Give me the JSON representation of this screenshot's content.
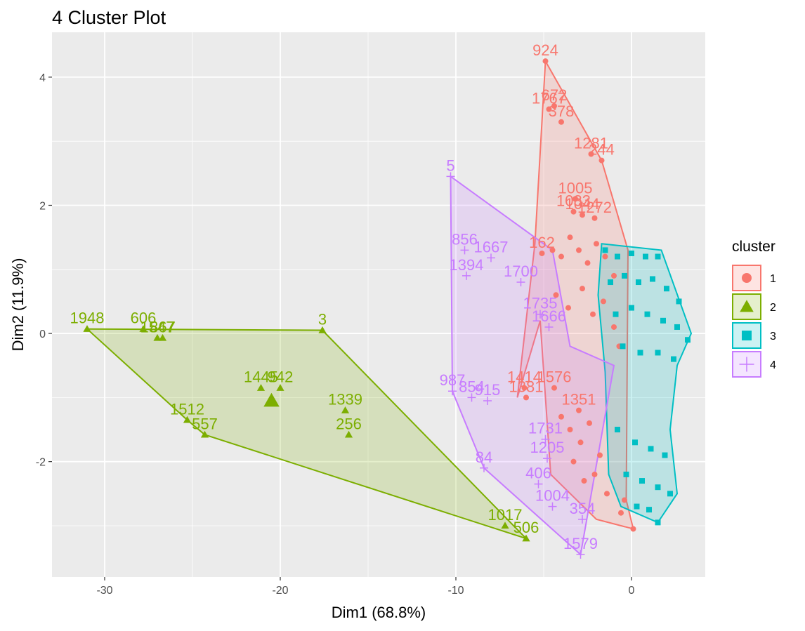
{
  "chart_data": {
    "type": "scatter",
    "title": "4 Cluster Plot",
    "xlabel": "Dim1 (68.8%)",
    "ylabel": "Dim2 (11.9%)",
    "xlim": [
      -33,
      4.2
    ],
    "ylim": [
      -3.8,
      4.7
    ],
    "x_ticks": [
      -30,
      -20,
      -10,
      0
    ],
    "y_ticks": [
      -2,
      0,
      2,
      4
    ],
    "grid": true,
    "legend": {
      "title": "cluster",
      "position": "right",
      "entries": [
        "1",
        "2",
        "3",
        "4"
      ]
    },
    "colors": {
      "1": "#F8766D",
      "2": "#7CAE00",
      "3": "#00BFC4",
      "4": "#C77CFF"
    },
    "series": [
      {
        "name": "1",
        "marker": "circle",
        "hull": [
          [
            -4.9,
            4.25
          ],
          [
            -1.7,
            2.7
          ],
          [
            -0.2,
            1.3
          ],
          [
            -0.3,
            -2.6
          ],
          [
            0.1,
            -3.05
          ],
          [
            -2,
            -2.9
          ],
          [
            -4.6,
            -2.2
          ],
          [
            -5.2,
            0.2
          ],
          [
            -6.5,
            -1
          ],
          [
            -5.5,
            1.4
          ]
        ],
        "points": [
          {
            "label": "924",
            "x": -4.9,
            "y": 4.25
          },
          {
            "label": "1767",
            "x": -4.7,
            "y": 3.5
          },
          {
            "label": "672",
            "x": -4.4,
            "y": 3.55
          },
          {
            "label": "378",
            "x": -4.0,
            "y": 3.3
          },
          {
            "label": "1281",
            "x": -2.3,
            "y": 2.8
          },
          {
            "label": "244",
            "x": -1.7,
            "y": 2.7
          },
          {
            "label": "1005",
            "x": -3.2,
            "y": 2.1
          },
          {
            "label": "1033",
            "x": -3.3,
            "y": 1.9
          },
          {
            "label": "1044",
            "x": -2.8,
            "y": 1.85
          },
          {
            "label": "1272",
            "x": -2.1,
            "y": 1.8
          },
          {
            "label": "162",
            "x": -5.1,
            "y": 1.25
          },
          {
            "label": "1414",
            "x": -6.1,
            "y": -0.85
          },
          {
            "label": "1576",
            "x": -4.4,
            "y": -0.85
          },
          {
            "label": "1381",
            "x": -6.0,
            "y": -1.0
          },
          {
            "label": "1351",
            "x": -3.0,
            "y": -1.2
          },
          {
            "label": "",
            "x": -4.5,
            "y": 1.3
          },
          {
            "label": "",
            "x": -4.0,
            "y": 1.2
          },
          {
            "label": "",
            "x": -3.5,
            "y": 1.5
          },
          {
            "label": "",
            "x": -3.0,
            "y": 1.3
          },
          {
            "label": "",
            "x": -2.5,
            "y": 1.1
          },
          {
            "label": "",
            "x": -2.0,
            "y": 1.4
          },
          {
            "label": "",
            "x": -1.5,
            "y": 1.2
          },
          {
            "label": "",
            "x": -1.0,
            "y": 0.9
          },
          {
            "label": "",
            "x": -4.3,
            "y": 0.6
          },
          {
            "label": "",
            "x": -3.6,
            "y": 0.4
          },
          {
            "label": "",
            "x": -2.8,
            "y": 0.7
          },
          {
            "label": "",
            "x": -2.2,
            "y": 0.3
          },
          {
            "label": "",
            "x": -1.6,
            "y": 0.5
          },
          {
            "label": "",
            "x": -1.0,
            "y": 0.1
          },
          {
            "label": "",
            "x": -0.7,
            "y": -0.2
          },
          {
            "label": "",
            "x": -4.0,
            "y": -1.3
          },
          {
            "label": "",
            "x": -3.5,
            "y": -1.5
          },
          {
            "label": "",
            "x": -2.9,
            "y": -1.7
          },
          {
            "label": "",
            "x": -2.4,
            "y": -1.4
          },
          {
            "label": "",
            "x": -1.8,
            "y": -1.9
          },
          {
            "label": "",
            "x": -3.3,
            "y": -2.0
          },
          {
            "label": "",
            "x": -2.7,
            "y": -2.3
          },
          {
            "label": "",
            "x": -2.1,
            "y": -2.2
          },
          {
            "label": "",
            "x": -1.4,
            "y": -2.5
          },
          {
            "label": "",
            "x": -0.6,
            "y": -2.8
          },
          {
            "label": "",
            "x": 0.1,
            "y": -3.05
          },
          {
            "label": "",
            "x": -0.4,
            "y": -2.6
          }
        ]
      },
      {
        "name": "2",
        "marker": "triangle",
        "hull": [
          [
            -31,
            0.07
          ],
          [
            -17.6,
            0.05
          ],
          [
            -6,
            -3.2
          ],
          [
            -24.3,
            -1.58
          ],
          [
            -25.3,
            -1.35
          ]
        ],
        "points": [
          {
            "label": "1948",
            "x": -31.0,
            "y": 0.07
          },
          {
            "label": "606",
            "x": -27.8,
            "y": 0.07
          },
          {
            "label": "1547",
            "x": -27.0,
            "y": -0.07
          },
          {
            "label": "867",
            "x": -26.7,
            "y": -0.07
          },
          {
            "label": "3",
            "x": -17.6,
            "y": 0.05
          },
          {
            "label": "1445",
            "x": -21.1,
            "y": -0.85
          },
          {
            "label": "942",
            "x": -20.0,
            "y": -0.85
          },
          {
            "label": "1339",
            "x": -16.3,
            "y": -1.2
          },
          {
            "label": "256",
            "x": -16.1,
            "y": -1.58
          },
          {
            "label": "1512",
            "x": -25.3,
            "y": -1.35
          },
          {
            "label": "557",
            "x": -24.3,
            "y": -1.58
          },
          {
            "label": "1017",
            "x": -7.2,
            "y": -3.0
          },
          {
            "label": "506",
            "x": -6.0,
            "y": -3.2
          }
        ]
      },
      {
        "name": "3",
        "marker": "square",
        "hull": [
          [
            -1.7,
            1.4
          ],
          [
            1.7,
            1.3
          ],
          [
            3.4,
            0.0
          ],
          [
            2.6,
            -0.5
          ],
          [
            2.2,
            -1.5
          ],
          [
            2.6,
            -2.5
          ],
          [
            1.5,
            -2.95
          ],
          [
            -0.6,
            -2.7
          ],
          [
            -1.3,
            -2.2
          ],
          [
            -1.5,
            -0.6
          ],
          [
            -1.9,
            0.6
          ]
        ],
        "points": [
          {
            "label": "",
            "x": -1.5,
            "y": 1.3
          },
          {
            "label": "",
            "x": -0.8,
            "y": 1.2
          },
          {
            "label": "",
            "x": 0.0,
            "y": 1.25
          },
          {
            "label": "",
            "x": 0.8,
            "y": 1.2
          },
          {
            "label": "",
            "x": 1.5,
            "y": 1.2
          },
          {
            "label": "",
            "x": -1.2,
            "y": 0.8
          },
          {
            "label": "",
            "x": -0.4,
            "y": 0.9
          },
          {
            "label": "",
            "x": 0.4,
            "y": 0.8
          },
          {
            "label": "",
            "x": 1.2,
            "y": 0.85
          },
          {
            "label": "",
            "x": 2.0,
            "y": 0.7
          },
          {
            "label": "",
            "x": 2.7,
            "y": 0.5
          },
          {
            "label": "",
            "x": -0.9,
            "y": 0.3
          },
          {
            "label": "",
            "x": 0.0,
            "y": 0.4
          },
          {
            "label": "",
            "x": 0.9,
            "y": 0.3
          },
          {
            "label": "",
            "x": 1.8,
            "y": 0.2
          },
          {
            "label": "",
            "x": 2.6,
            "y": 0.1
          },
          {
            "label": "",
            "x": 3.2,
            "y": -0.1
          },
          {
            "label": "",
            "x": -0.5,
            "y": -0.2
          },
          {
            "label": "",
            "x": 0.5,
            "y": -0.3
          },
          {
            "label": "",
            "x": 1.5,
            "y": -0.3
          },
          {
            "label": "",
            "x": 2.4,
            "y": -0.4
          },
          {
            "label": "",
            "x": -0.8,
            "y": -1.5
          },
          {
            "label": "",
            "x": 0.2,
            "y": -1.7
          },
          {
            "label": "",
            "x": 1.1,
            "y": -1.8
          },
          {
            "label": "",
            "x": 1.9,
            "y": -1.9
          },
          {
            "label": "",
            "x": -0.3,
            "y": -2.2
          },
          {
            "label": "",
            "x": 0.6,
            "y": -2.3
          },
          {
            "label": "",
            "x": 1.5,
            "y": -2.4
          },
          {
            "label": "",
            "x": 2.2,
            "y": -2.5
          },
          {
            "label": "",
            "x": 0.3,
            "y": -2.7
          },
          {
            "label": "",
            "x": 1.0,
            "y": -2.75
          },
          {
            "label": "",
            "x": 1.5,
            "y": -2.95
          }
        ]
      },
      {
        "name": "4",
        "marker": "cross",
        "hull": [
          [
            -10.3,
            2.45
          ],
          [
            -4.5,
            1.3
          ],
          [
            -3.5,
            -0.2
          ],
          [
            -1.0,
            -0.5
          ],
          [
            -2.9,
            -3.45
          ],
          [
            -8.4,
            -2.1
          ],
          [
            -10.2,
            -0.9
          ]
        ],
        "points": [
          {
            "label": "5",
            "x": -10.3,
            "y": 2.45
          },
          {
            "label": "856",
            "x": -9.5,
            "y": 1.3
          },
          {
            "label": "1667",
            "x": -8.0,
            "y": 1.18
          },
          {
            "label": "1394",
            "x": -9.4,
            "y": 0.9
          },
          {
            "label": "1700",
            "x": -6.3,
            "y": 0.8
          },
          {
            "label": "1735",
            "x": -5.2,
            "y": 0.3
          },
          {
            "label": "1666",
            "x": -4.7,
            "y": 0.1
          },
          {
            "label": "987",
            "x": -10.2,
            "y": -0.9
          },
          {
            "label": "854",
            "x": -9.1,
            "y": -1.0
          },
          {
            "label": "915",
            "x": -8.2,
            "y": -1.05
          },
          {
            "label": "1731",
            "x": -4.9,
            "y": -1.65
          },
          {
            "label": "1205",
            "x": -4.8,
            "y": -1.95
          },
          {
            "label": "84",
            "x": -8.4,
            "y": -2.1
          },
          {
            "label": "406",
            "x": -5.3,
            "y": -2.35
          },
          {
            "label": "1004",
            "x": -4.5,
            "y": -2.7
          },
          {
            "label": "354",
            "x": -2.8,
            "y": -2.9
          },
          {
            "label": "1579",
            "x": -2.9,
            "y": -3.45
          }
        ]
      }
    ],
    "centroids": [
      {
        "cluster": "2",
        "x": -20.5,
        "y": -1.05
      }
    ]
  }
}
